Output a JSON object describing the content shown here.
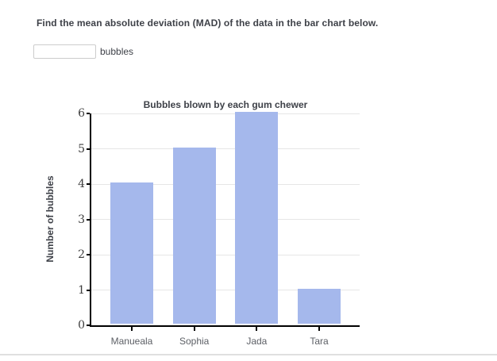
{
  "question": {
    "prompt": "Find the mean absolute deviation (MAD) of the data in the bar chart below.",
    "answer_input": {
      "value": "",
      "placeholder": ""
    },
    "unit_label": "bubbles"
  },
  "chart_data": {
    "type": "bar",
    "title": "Bubbles blown by each gum chewer",
    "categories": [
      "Manueala",
      "Sophia",
      "Jada",
      "Tara"
    ],
    "values": [
      4,
      5,
      6,
      1
    ],
    "xlabel": "",
    "ylabel": "Number of bubbles",
    "ylim": [
      0,
      6
    ],
    "yticks": [
      0,
      1,
      2,
      3,
      4,
      5,
      6
    ],
    "grid": true,
    "legend": "none",
    "bar_color": "#a5b8ec"
  },
  "colors": {
    "background": "#ffffff",
    "text_dark": "#3e4148",
    "text_muted": "#5d6066",
    "tick_text": "#3d3d3d",
    "gridline": "#e6e6e6",
    "axis": "#000000",
    "bar_fill": "#a5b8ec",
    "input_border": "#cccccc",
    "divider": "#e0e0e0"
  }
}
